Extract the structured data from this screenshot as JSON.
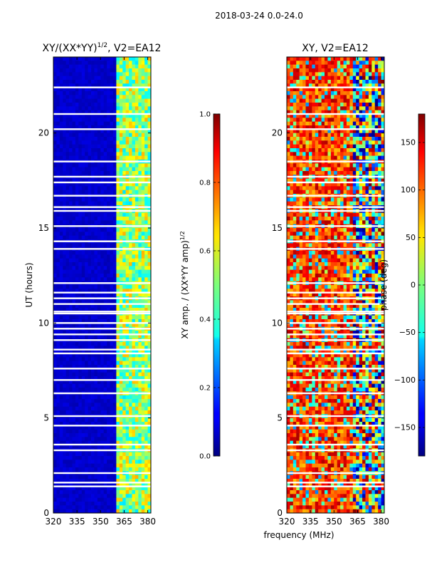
{
  "suptitle": "2018-03-24 0.0-24.0",
  "chart_data": [
    {
      "type": "heatmap",
      "title": "XY/(XX*YY)",
      "title_exp": "1/2",
      "title_suffix": ", V2=EA12",
      "xlabel": "",
      "ylabel": "UT (hours)",
      "xlim": [
        320,
        382
      ],
      "ylim": [
        0,
        24
      ],
      "xticks": [
        "320",
        "335",
        "350",
        "365",
        "380"
      ],
      "xtick_values": [
        320,
        335,
        350,
        365,
        380
      ],
      "yticks": [
        "0",
        "5",
        "10",
        "15",
        "20"
      ],
      "ytick_values": [
        0,
        5,
        10,
        15,
        20
      ],
      "colorbar": {
        "label": "XY amp. / (XX*YY amp)",
        "label_exp": "1/2",
        "min": 0.0,
        "max": 1.0,
        "ticks": [
          "0.0",
          "0.2",
          "0.4",
          "0.6",
          "0.8",
          "1.0"
        ],
        "tick_values": [
          0.0,
          0.2,
          0.4,
          0.6,
          0.8,
          1.0
        ]
      },
      "bright_columns_mhz": [
        362,
        365,
        368,
        371,
        374,
        377,
        380
      ],
      "flagged_rows_ut": [
        1.4,
        1.6,
        2.1,
        3.3,
        3.6,
        4.6,
        5.1,
        6.3,
        7.0,
        7.6,
        8.4,
        8.6,
        9.1,
        9.4,
        9.7,
        10.0,
        10.5,
        10.6,
        11.0,
        11.3,
        11.6,
        12.1,
        13.9,
        14.3,
        15.1,
        15.9,
        16.1,
        16.7,
        17.4,
        17.7,
        18.5,
        20.2,
        21.0,
        22.4
      ]
    },
    {
      "type": "heatmap",
      "title": "XY, V2=EA12",
      "xlabel": "frequency (MHz)",
      "ylabel": "",
      "xlim": [
        320,
        382
      ],
      "ylim": [
        0,
        24
      ],
      "xticks": [
        "320",
        "335",
        "350",
        "365",
        "380"
      ],
      "xtick_values": [
        320,
        335,
        350,
        365,
        380
      ],
      "yticks": [
        "0",
        "5",
        "10",
        "15",
        "20"
      ],
      "ytick_values": [
        0,
        5,
        10,
        15,
        20
      ],
      "colorbar": {
        "label": "phase (deg)",
        "min": -180,
        "max": 180,
        "ticks": [
          "−150",
          "−100",
          "−50",
          "0",
          "50",
          "100",
          "150"
        ],
        "tick_values": [
          -150,
          -100,
          -50,
          0,
          50,
          100,
          150
        ]
      },
      "flagged_rows_ut": [
        1.4,
        1.6,
        2.1,
        3.3,
        3.6,
        4.6,
        5.1,
        6.3,
        7.0,
        7.6,
        8.4,
        8.6,
        9.1,
        9.4,
        9.7,
        10.0,
        10.5,
        10.6,
        11.0,
        11.3,
        11.6,
        12.1,
        13.9,
        14.3,
        15.1,
        15.9,
        16.1,
        16.7,
        17.4,
        17.7,
        18.5,
        20.2,
        21.0,
        22.4
      ]
    }
  ]
}
